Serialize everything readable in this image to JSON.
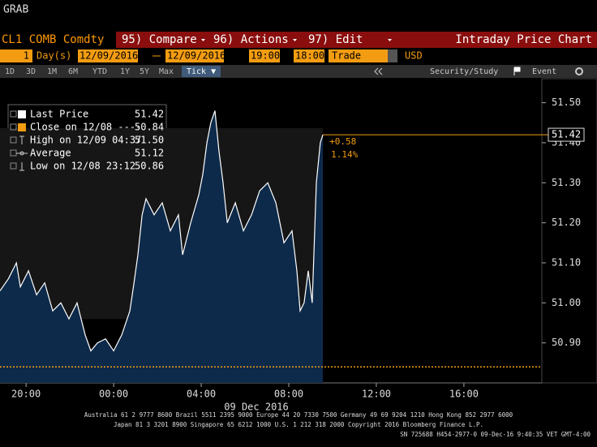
{
  "header": {
    "title": "GRAB"
  },
  "menu": {
    "security": "CL1 COMB Comdty",
    "items": [
      "95) Compare",
      "96) Actions",
      "97) Edit"
    ],
    "title": "Intraday Price Chart"
  },
  "toolbar": {
    "period": "1",
    "unit": "Day(s)",
    "start_date": "12/09/2016",
    "end_date": "12/09/2016",
    "start_time": "19:00",
    "end_time": "18:00",
    "field": "Trade",
    "currency": "USD"
  },
  "ranges": [
    "1D",
    "3D",
    "1M",
    "6M",
    "YTD",
    "1Y",
    "5Y",
    "Max"
  ],
  "tick_button": "Tick ▼",
  "tools": [
    "Security/Study",
    "Event"
  ],
  "chart_data": {
    "type": "line",
    "legend": [
      {
        "name": "Last Price",
        "value": "51.42"
      },
      {
        "name": "Close on 12/08 ----",
        "value": "50.84"
      },
      {
        "name": "High on 12/09 04:37",
        "value": "51.50"
      },
      {
        "name": "Average",
        "value": "51.12"
      },
      {
        "name": "Low on 12/08 23:12",
        "value": "50.86"
      }
    ],
    "x": [
      18.81,
      19.19,
      19.56,
      19.74,
      20.11,
      20.48,
      20.85,
      21.22,
      21.59,
      21.96,
      22.33,
      22.7,
      22.96,
      23.26,
      23.63,
      24.0,
      24.37,
      24.74,
      24.93,
      25.11,
      25.3,
      25.48,
      25.85,
      26.22,
      26.59,
      26.96,
      27.15,
      27.52,
      27.89,
      28.07,
      28.26,
      28.44,
      28.63,
      28.81,
      29.0,
      29.19,
      29.56,
      29.93,
      30.3,
      30.67,
      31.04,
      31.41,
      31.78,
      32.15,
      32.37,
      32.52,
      32.7,
      32.89,
      33.07,
      33.26,
      33.44,
      33.56
    ],
    "values": [
      51.03,
      51.06,
      51.1,
      51.04,
      51.08,
      51.02,
      51.05,
      50.98,
      51.0,
      50.96,
      51.0,
      50.92,
      50.88,
      50.9,
      50.91,
      50.88,
      50.92,
      50.98,
      51.05,
      51.12,
      51.22,
      51.26,
      51.22,
      51.25,
      51.18,
      51.22,
      51.12,
      51.2,
      51.27,
      51.32,
      51.4,
      51.45,
      51.48,
      51.38,
      51.3,
      51.2,
      51.25,
      51.18,
      51.22,
      51.28,
      51.3,
      51.25,
      51.15,
      51.18,
      51.08,
      50.98,
      51.0,
      51.08,
      51.0,
      51.3,
      51.4,
      51.42
    ],
    "color": "#ffffff",
    "area_color": "#0e2a4a",
    "close_value": 50.84,
    "close_color": "#f39c12",
    "last_value": 51.42,
    "change": "+0.58",
    "change_pct": "1.14%",
    "xlim": [
      18.81,
      43.56
    ],
    "ylim": [
      50.8,
      51.56
    ],
    "xticks": [
      {
        "value": 20,
        "label": "20:00"
      },
      {
        "value": 24,
        "label": "00:00"
      },
      {
        "value": 28,
        "label": "04:00"
      },
      {
        "value": 32,
        "label": "08:00"
      },
      {
        "value": 36,
        "label": "12:00"
      },
      {
        "value": 40,
        "label": "16:00"
      }
    ],
    "yticks": [
      {
        "value": 50.9,
        "label": "50.90"
      },
      {
        "value": 51,
        "label": "51.00"
      },
      {
        "value": 51.1,
        "label": "51.10"
      },
      {
        "value": 51.2,
        "label": "51.20"
      },
      {
        "value": 51.3,
        "label": "51.30"
      },
      {
        "value": 51.4,
        "label": "51.40"
      },
      {
        "value": 51.5,
        "label": "51.50"
      }
    ],
    "date_label": "09 Dec 2016"
  },
  "footer": [
    "Australia 61 2 9777 8600 Brazil 5511 2395 9000 Europe 44 20 7330 7500 Germany 49 69 9204 1210 Hong Kong 852 2977 6000",
    "Japan 81 3 3201 8900        Singapore 65 6212 1000        U.S. 1 212 318 2000          Copyright 2016 Bloomberg Finance L.P.",
    "SN 725688 H454-2977-0 09-Dec-16  9:40:35 VET  GMT-4:00"
  ]
}
